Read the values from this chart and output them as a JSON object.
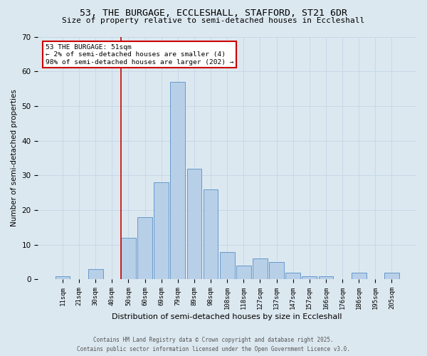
{
  "title_line1": "53, THE BURGAGE, ECCLESHALL, STAFFORD, ST21 6DR",
  "title_line2": "Size of property relative to semi-detached houses in Eccleshall",
  "xlabel": "Distribution of semi-detached houses by size in Eccleshall",
  "ylabel": "Number of semi-detached properties",
  "categories": [
    "11sqm",
    "21sqm",
    "30sqm",
    "40sqm",
    "50sqm",
    "60sqm",
    "69sqm",
    "79sqm",
    "89sqm",
    "98sqm",
    "108sqm",
    "118sqm",
    "127sqm",
    "137sqm",
    "147sqm",
    "157sqm",
    "166sqm",
    "176sqm",
    "186sqm",
    "195sqm",
    "205sqm"
  ],
  "values": [
    1,
    0,
    3,
    0,
    12,
    18,
    28,
    57,
    32,
    26,
    8,
    4,
    6,
    5,
    2,
    1,
    1,
    0,
    2,
    0,
    2
  ],
  "bar_color": "#b8cfe8",
  "bar_edge_color": "#6699cc",
  "grid_color": "#c8d8e8",
  "background_color": "#dce8f0",
  "red_line_index": 4,
  "annotation_text": "53 THE BURGAGE: 51sqm\n← 2% of semi-detached houses are smaller (4)\n98% of semi-detached houses are larger (202) →",
  "annotation_box_color": "#ffffff",
  "annotation_border_color": "#cc0000",
  "footnote_line1": "Contains HM Land Registry data © Crown copyright and database right 2025.",
  "footnote_line2": "Contains public sector information licensed under the Open Government Licence v3.0.",
  "ylim": [
    0,
    70
  ],
  "yticks": [
    0,
    10,
    20,
    30,
    40,
    50,
    60,
    70
  ]
}
